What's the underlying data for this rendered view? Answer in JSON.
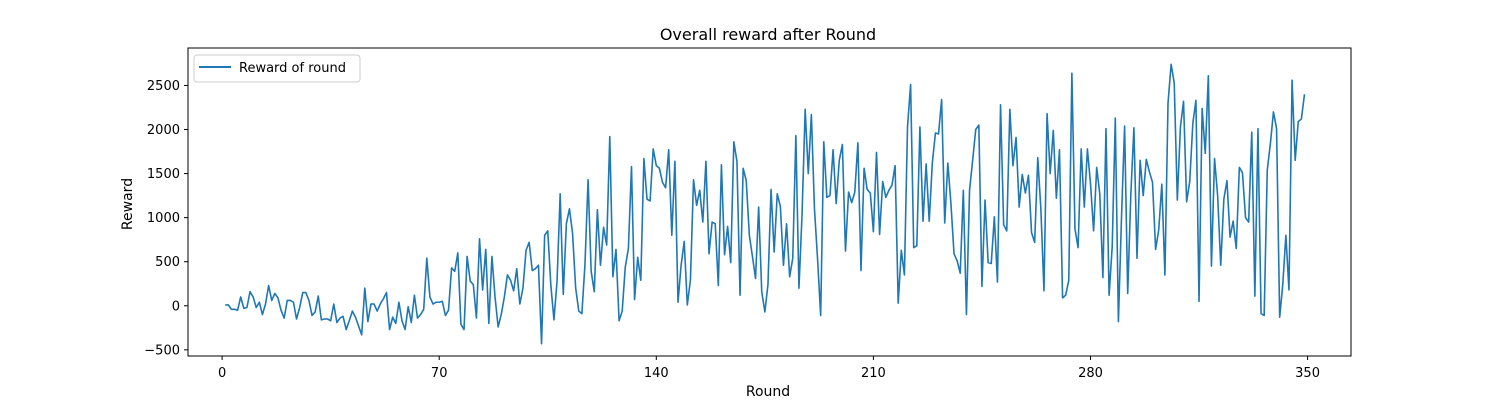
{
  "chart_data": {
    "type": "line",
    "title": "Overall reward after Round",
    "xlabel": "Round",
    "ylabel": "Reward",
    "xlim": [
      -11,
      364
    ],
    "ylim": [
      -570,
      2925
    ],
    "xticks": [
      0,
      70,
      140,
      210,
      280,
      350
    ],
    "yticks": [
      -500,
      0,
      500,
      1000,
      1500,
      2000,
      2500
    ],
    "legend": "top-left",
    "grid": false,
    "series": [
      {
        "name": "Reward of round",
        "color": "#1f77b4",
        "x_start": 1,
        "x_step": 1,
        "values": [
          10,
          10,
          -40,
          -40,
          -50,
          100,
          -30,
          -20,
          160,
          100,
          -20,
          40,
          -100,
          20,
          230,
          60,
          140,
          90,
          -50,
          -140,
          60,
          60,
          40,
          -150,
          -20,
          150,
          150,
          60,
          -110,
          -70,
          110,
          -160,
          -150,
          -150,
          -170,
          20,
          -190,
          -140,
          -120,
          -270,
          -170,
          -60,
          -130,
          -230,
          -330,
          200,
          -180,
          20,
          20,
          -60,
          20,
          80,
          150,
          -270,
          -130,
          -200,
          40,
          -170,
          -270,
          -10,
          -190,
          120,
          -140,
          -100,
          -40,
          540,
          100,
          20,
          40,
          40,
          50,
          -110,
          -50,
          430,
          390,
          600,
          -210,
          -270,
          560,
          280,
          240,
          -140,
          760,
          180,
          640,
          -200,
          560,
          100,
          -240,
          -100,
          100,
          350,
          290,
          170,
          420,
          20,
          200,
          630,
          720,
          400,
          420,
          460,
          -430,
          800,
          850,
          230,
          -160,
          280,
          1270,
          130,
          930,
          1100,
          820,
          200,
          -60,
          -90,
          470,
          1430,
          390,
          160,
          1090,
          460,
          890,
          690,
          1920,
          330,
          640,
          -170,
          -60,
          440,
          650,
          1580,
          70,
          550,
          290,
          1670,
          1210,
          1190,
          1780,
          1590,
          1560,
          1400,
          1340,
          1770,
          800,
          1640,
          40,
          460,
          730,
          10,
          290,
          1430,
          1140,
          1310,
          950,
          1640,
          590,
          950,
          930,
          230,
          1600,
          580,
          900,
          490,
          1860,
          1640,
          120,
          1560,
          1420,
          800,
          560,
          310,
          1120,
          160,
          -70,
          240,
          1320,
          610,
          1270,
          1130,
          460,
          930,
          330,
          540,
          1930,
          200,
          1040,
          2230,
          1500,
          2170,
          1100,
          530,
          -110,
          1860,
          1230,
          1250,
          1770,
          1160,
          1650,
          1830,
          620,
          1290,
          1170,
          1290,
          1850,
          400,
          1560,
          1320,
          1280,
          840,
          1740,
          810,
          1410,
          1230,
          1310,
          1370,
          1590,
          30,
          630,
          350,
          2030,
          2510,
          660,
          680,
          2030,
          960,
          1610,
          960,
          1620,
          1960,
          1950,
          2340,
          940,
          1620,
          1160,
          590,
          510,
          370,
          1310,
          -100,
          1310,
          1650,
          2000,
          2050,
          220,
          1200,
          490,
          480,
          1010,
          270,
          2280,
          920,
          850,
          2230,
          1590,
          1910,
          1120,
          1490,
          1280,
          1480,
          830,
          720,
          1680,
          1100,
          170,
          2180,
          1500,
          1990,
          1220,
          1770,
          90,
          120,
          290,
          2640,
          870,
          660,
          1780,
          1120,
          1780,
          1390,
          850,
          1570,
          1270,
          320,
          2010,
          120,
          670,
          2130,
          -180,
          1000,
          2040,
          140,
          1260,
          2020,
          540,
          1650,
          1250,
          1660,
          1520,
          1400,
          640,
          860,
          1380,
          350,
          2300,
          2740,
          2530,
          1200,
          2030,
          2320,
          1180,
          1410,
          2070,
          2330,
          50,
          2240,
          1730,
          2610,
          450,
          1670,
          1250,
          460,
          1210,
          1420,
          780,
          960,
          650,
          1570,
          1510,
          1000,
          950,
          1970,
          110,
          2010,
          -90,
          -110,
          1540,
          1840,
          2200,
          2010,
          -130,
          240,
          800,
          180,
          2560,
          1650,
          2090,
          2120,
          2400
        ]
      }
    ]
  }
}
